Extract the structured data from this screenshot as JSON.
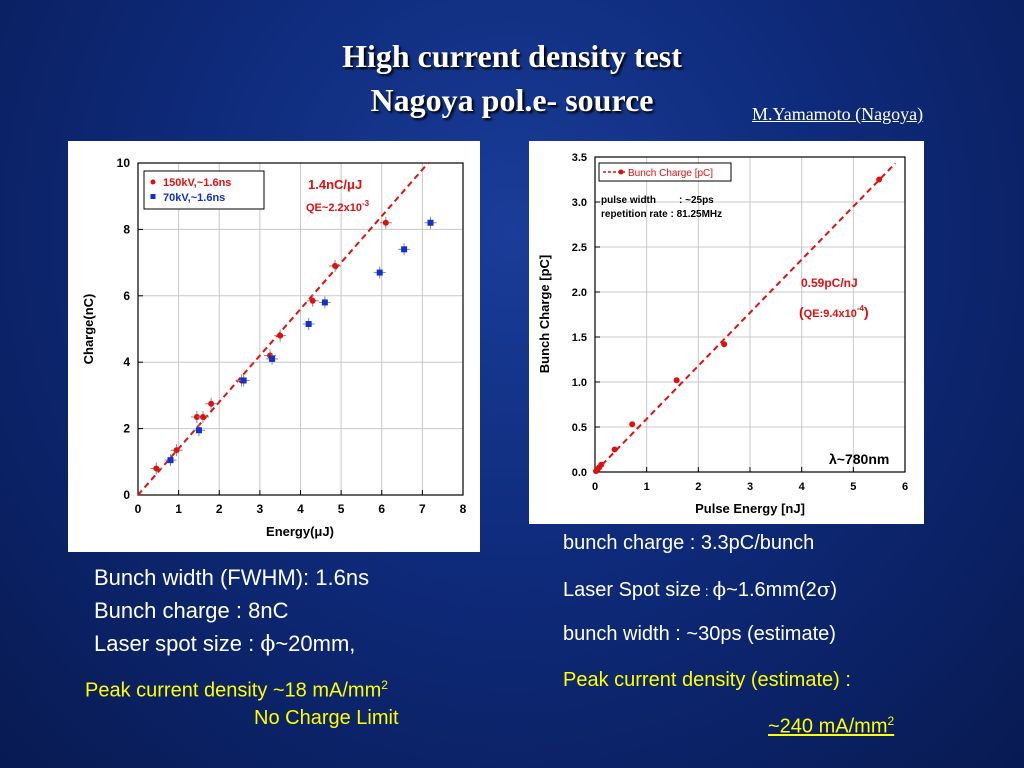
{
  "slide": {
    "title_line1": "High current density test",
    "title_line2": "Nagoya pol.e- source",
    "author": "M.Yamamoto (Nagoya)"
  },
  "colors": {
    "background": "#0e2a7a",
    "accent_text": "#ffff00",
    "red_series": "#e01010",
    "blue_series": "#1030d0"
  },
  "left": {
    "line1": "Bunch width (FWHM): 1.6ns",
    "line2": "Bunch charge : 8nC",
    "line3_prefix": "Laser spot size : ",
    "line3_symbol": "ϕ",
    "line3_suffix": "~20mm,",
    "peak_label": "Peak current density ~18 mA/mm",
    "peak_sup": "2",
    "no_limit": "No Charge Limit"
  },
  "right": {
    "line1": "bunch charge : 3.3pC/bunch",
    "line2_prefix": "Laser Spot size",
    "line2_colon": " : ",
    "line2_symbol": "ϕ",
    "line2_mid": "~1.6mm(2",
    "line2_sigma": "σ",
    "line2_end": ")",
    "line3": "bunch width : ~30ps (estimate)",
    "line4": "Peak current density (estimate) :",
    "line5": "~240 mA/mm",
    "line5_sup": "2"
  },
  "chart_data": [
    {
      "type": "scatter",
      "xlabel": "Energy(μJ)",
      "ylabel": "Charge(nC)",
      "xlim": [
        0,
        8
      ],
      "ylim": [
        0,
        10
      ],
      "xticks": [
        "0",
        "1",
        "2",
        "3",
        "4",
        "5",
        "6",
        "7",
        "8"
      ],
      "yticks": [
        "0",
        "2",
        "4",
        "6",
        "8",
        "10"
      ],
      "annotation": "1.4nC/μJ",
      "annotation2_base": "QE~2.2x10",
      "annotation2_exp": "-3",
      "fit_slope": 1.4,
      "series": [
        {
          "name": "150kV,~1.6ns",
          "color": "#e01010",
          "marker": "circle",
          "points": [
            [
              0.45,
              0.8
            ],
            [
              0.95,
              1.35
            ],
            [
              1.45,
              2.35
            ],
            [
              1.6,
              2.35
            ],
            [
              1.8,
              2.75
            ],
            [
              2.55,
              3.45
            ],
            [
              3.25,
              4.2
            ],
            [
              3.5,
              4.8
            ],
            [
              4.3,
              5.85
            ],
            [
              4.85,
              6.9
            ],
            [
              6.1,
              8.2
            ]
          ]
        },
        {
          "name": "70kV,~1.6ns",
          "color": "#1030d0",
          "marker": "square",
          "points": [
            [
              0.8,
              1.05
            ],
            [
              1.5,
              1.95
            ],
            [
              2.6,
              3.45
            ],
            [
              3.3,
              4.1
            ],
            [
              4.2,
              5.15
            ],
            [
              4.6,
              5.8
            ],
            [
              5.95,
              6.7
            ],
            [
              6.55,
              7.4
            ],
            [
              7.2,
              8.2
            ]
          ]
        }
      ]
    },
    {
      "type": "scatter",
      "xlabel": "Pulse Energy [nJ]",
      "ylabel": "Bunch Charge [pC]",
      "xlim": [
        0,
        6
      ],
      "ylim": [
        0,
        3.5
      ],
      "xticks": [
        "0",
        "1",
        "2",
        "3",
        "4",
        "5",
        "6"
      ],
      "yticks": [
        "0.0",
        "0.5",
        "1.0",
        "1.5",
        "2.0",
        "2.5",
        "3.0",
        "3.5"
      ],
      "legend": "Bunch Charge [pC]",
      "note1_label": "pulse width",
      "note1_value": ": ~25ps",
      "note2": "repetition rate : 81.25MHz",
      "annotation": "0.59pC/nJ",
      "annotation2_open": "(",
      "annotation2_base": "QE:9.4x10",
      "annotation2_exp": "-4",
      "annotation2_close": ")",
      "wavelength": "λ~780nm",
      "fit_slope": 0.59,
      "series": [
        {
          "name": "Bunch Charge [pC]",
          "color": "#e01010",
          "marker": "circle",
          "points": [
            [
              0.02,
              0.01
            ],
            [
              0.05,
              0.03
            ],
            [
              0.08,
              0.05
            ],
            [
              0.12,
              0.08
            ],
            [
              0.38,
              0.25
            ],
            [
              0.72,
              0.53
            ],
            [
              1.58,
              1.02
            ],
            [
              2.5,
              1.42
            ],
            [
              5.5,
              3.25
            ]
          ]
        }
      ]
    }
  ]
}
